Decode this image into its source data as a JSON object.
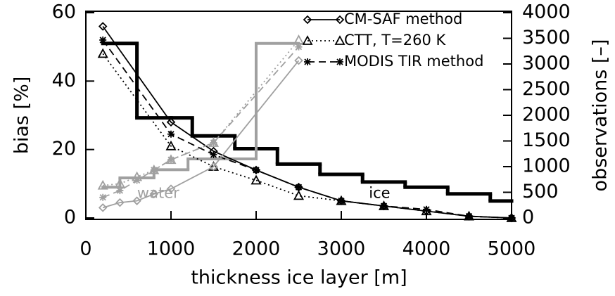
{
  "chart_data": {
    "type": "line",
    "xlabel": "thickness ice layer [m]",
    "ylabel": "bias [%]",
    "y2label": "observations [–]",
    "xlim": [
      0,
      5000
    ],
    "xticks": [
      0,
      1000,
      2000,
      3000,
      4000,
      5000
    ],
    "ylim": [
      0,
      60
    ],
    "yticks": [
      0,
      20,
      40,
      60
    ],
    "y2lim": [
      0,
      4000
    ],
    "y2ticks": [
      0,
      500,
      1000,
      1500,
      2000,
      2500,
      3000,
      3500,
      4000
    ],
    "legend": "upper right",
    "annotations": [
      {
        "text": "water",
        "x": 850,
        "y": 5
      },
      {
        "text": "ice",
        "x": 3450,
        "y": 5
      }
    ],
    "series": [
      {
        "name": "CM-SAF method",
        "color": "#000000",
        "marker": "diamond",
        "dash": "solid",
        "x": [
          200,
          1000,
          1500,
          2000,
          2500,
          3000,
          3500,
          4000,
          4500,
          5000
        ],
        "values": [
          56,
          28,
          19.5,
          14,
          9,
          5,
          3.5,
          2,
          0.5,
          0
        ]
      },
      {
        "name": "CTT, T=260 K",
        "color": "#000000",
        "marker": "triangle",
        "dash": "dotted",
        "x": [
          200,
          1000,
          1500,
          2000,
          2500,
          3000,
          3500,
          4000,
          4500,
          5000
        ],
        "values": [
          48,
          21,
          15,
          11,
          6.5,
          5,
          3.5,
          2,
          0.5,
          0
        ]
      },
      {
        "name": "MODIS TIR method",
        "color": "#000000",
        "marker": "asterisk",
        "dash": "dashed",
        "x": [
          200,
          1000,
          1500,
          2000,
          2500,
          3000,
          3500,
          4000,
          4500,
          5000
        ],
        "values": [
          52,
          24.5,
          18.5,
          14,
          9,
          5,
          3.5,
          2.5,
          0.5,
          0
        ]
      },
      {
        "color": "#a0a0a0",
        "marker": "diamond",
        "dash": "solid",
        "x": [
          200,
          400,
          600,
          800,
          1000,
          1500,
          2500
        ],
        "values": [
          3,
          4.5,
          5,
          7,
          8.5,
          15,
          46
        ]
      },
      {
        "color": "#a0a0a0",
        "marker": "triangle",
        "dash": "dotted",
        "x": [
          200,
          400,
          600,
          800,
          1000,
          1500,
          2500
        ],
        "values": [
          9.5,
          10,
          12,
          14,
          17,
          22,
          52
        ]
      },
      {
        "color": "#a0a0a0",
        "marker": "asterisk",
        "dash": "dashed",
        "x": [
          200,
          400,
          600,
          800,
          1000,
          1500,
          2500
        ],
        "values": [
          6,
          8,
          11,
          14,
          17,
          22,
          50
        ]
      }
    ],
    "histograms": [
      {
        "color": "#000000",
        "axis": "y2",
        "bins": [
          200,
          600,
          1000,
          1250,
          1750,
          2250,
          2750,
          3250,
          3750,
          4250,
          4750,
          5000
        ],
        "counts": [
          3400,
          1950,
          1950,
          1600,
          1350,
          1050,
          850,
          700,
          600,
          470,
          330
        ]
      },
      {
        "color": "#a0a0a0",
        "axis": "y2",
        "bins": [
          200,
          400,
          800,
          1200,
          2000,
          2500
        ],
        "counts": [
          600,
          780,
          940,
          1150,
          3400
        ]
      }
    ]
  }
}
